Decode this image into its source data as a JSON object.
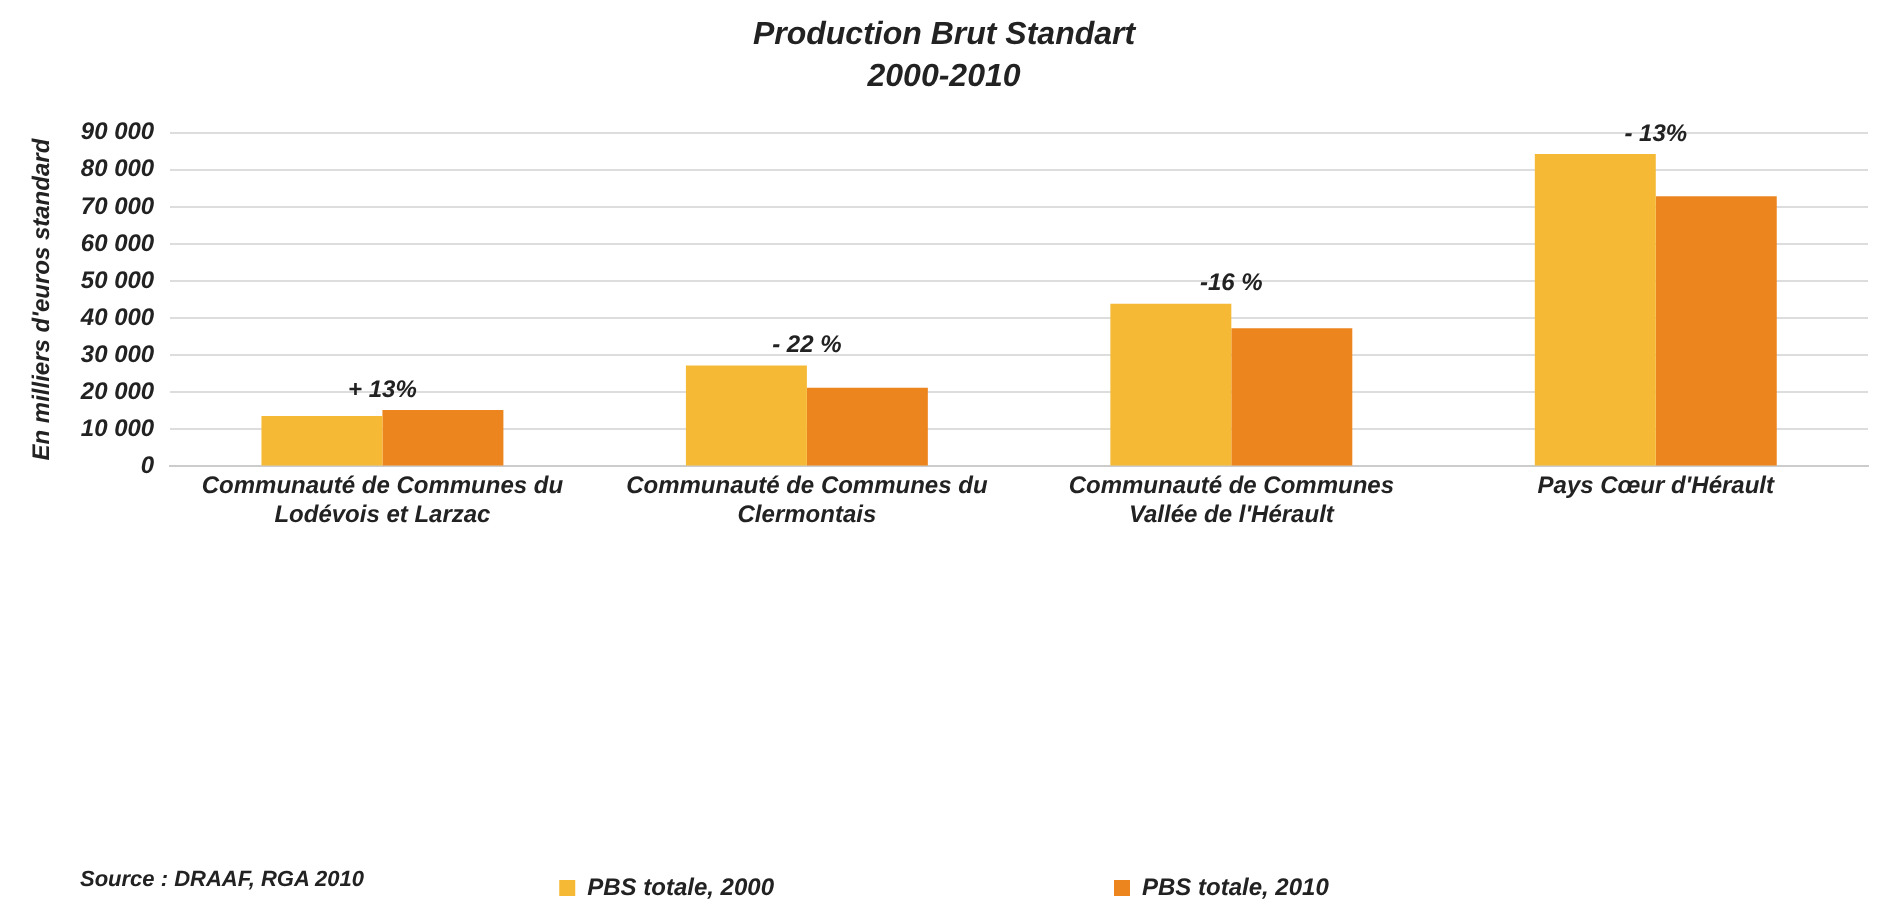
{
  "chart_data": {
    "type": "bar",
    "title": "Production Brut Standart",
    "subtitle": "2000-2010",
    "ylabel": "En milliers d'euros standard",
    "categories": [
      "Communauté de Communes du Lodévois et Larzac",
      "Communauté de Communes du Clermontais",
      "Communauté de Communes Vallée de l'Hérault",
      "Pays Cœur d'Hérault"
    ],
    "series": [
      {
        "name": "PBS totale, 2000",
        "color": "#f5b935",
        "values": [
          13600,
          27200,
          43900,
          84300
        ]
      },
      {
        "name": "PBS totale, 2010",
        "color": "#ec851e",
        "values": [
          15200,
          21200,
          37300,
          72900
        ]
      }
    ],
    "ylim": [
      0,
      90000
    ],
    "yticks": [
      {
        "value": 0,
        "label": "0"
      },
      {
        "value": 10000,
        "label": "10 000"
      },
      {
        "value": 20000,
        "label": "20 000"
      },
      {
        "value": 30000,
        "label": "30 000"
      },
      {
        "value": 40000,
        "label": "40 000"
      },
      {
        "value": 50000,
        "label": "50 000"
      },
      {
        "value": 60000,
        "label": "60 000"
      },
      {
        "value": 70000,
        "label": "70 000"
      },
      {
        "value": 80000,
        "label": "80 000"
      },
      {
        "value": 90000,
        "label": "90 000"
      }
    ],
    "grid": "y",
    "legend": "bottom",
    "annotations": [
      {
        "text": "+ 13%",
        "x": "Communauté de Communes du Lodévois et Larzac",
        "y": 15200
      },
      {
        "text": "- 22 %",
        "x": "Communauté de Communes du Clermontais",
        "y": 27200
      },
      {
        "text": "-16 %",
        "x": "Communauté de Communes Vallée de l'Hérault",
        "y": 43900
      },
      {
        "text": "- 13%",
        "x": "Pays Cœur d'Hérault",
        "y": 84300
      },
      "Source : DRAAF, RGA 2010"
    ]
  }
}
